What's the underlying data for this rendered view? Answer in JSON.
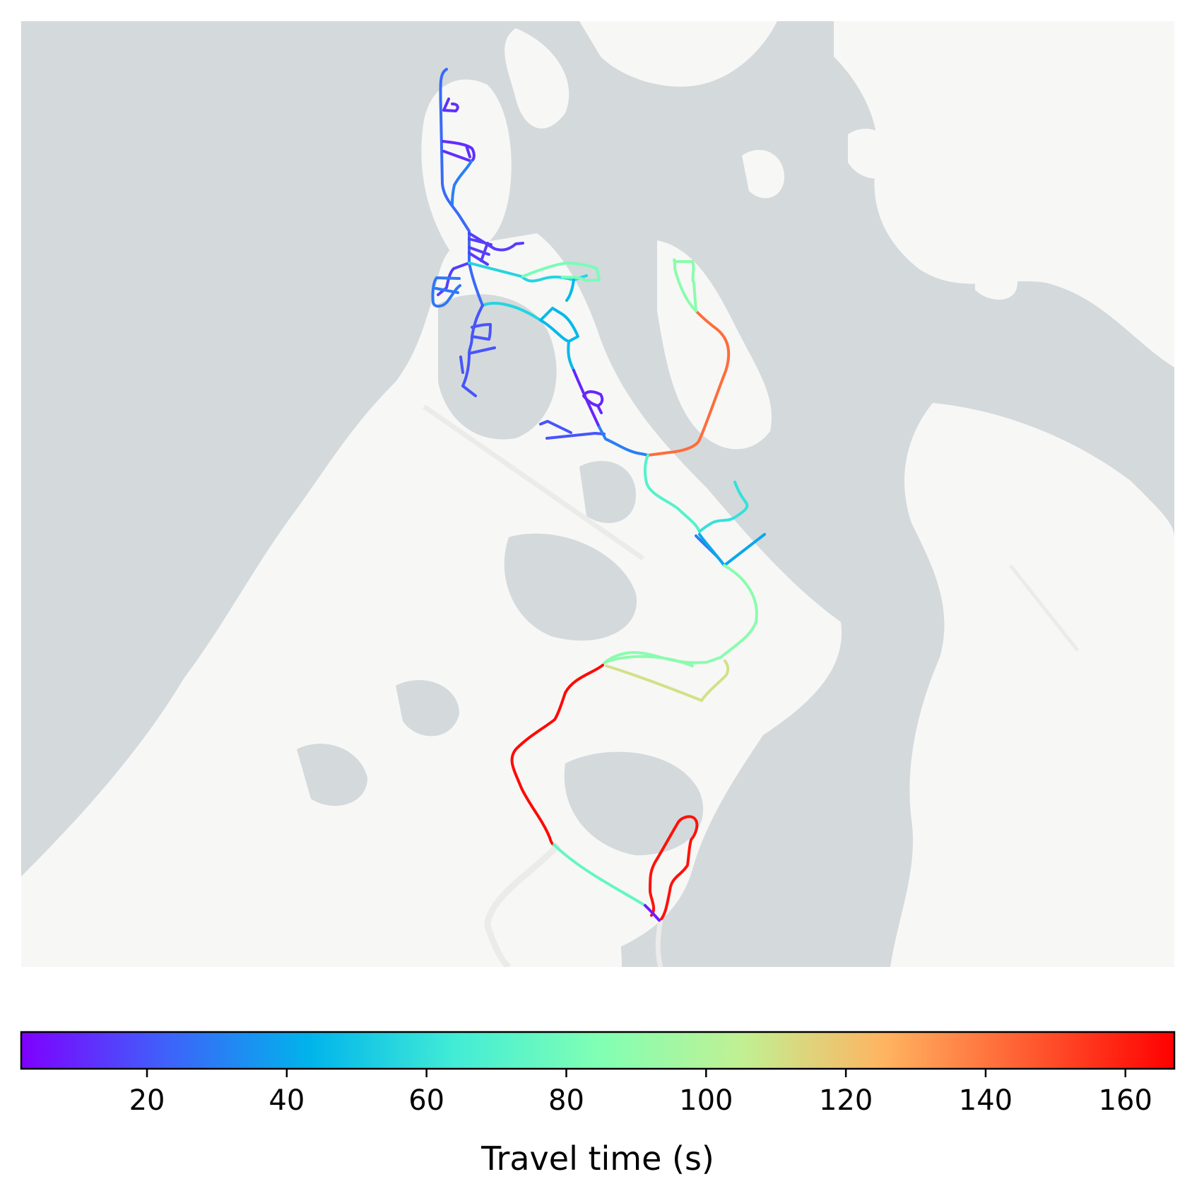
{
  "colors": {
    "water": "#d4d9dc",
    "land": "#f7f7f6",
    "road_faint": "#ebebea",
    "colormap": [
      "#7f00ff",
      "#3f61fa",
      "#00b4eb",
      "#41ecd6",
      "#80ffb4",
      "#c1f093",
      "#ffb360",
      "#ff5a30",
      "#ff0000"
    ]
  },
  "colorbar": {
    "label": "Travel time (s)",
    "vmin": 2,
    "vmax": 167,
    "ticks": [
      20,
      40,
      60,
      80,
      100,
      120,
      140,
      160
    ]
  },
  "routes": [
    {
      "id": "north-spine",
      "travel_time_s": 25
    },
    {
      "id": "north-loops",
      "travel_time_s": 12
    },
    {
      "id": "north-branch",
      "travel_time_s": 30
    },
    {
      "id": "central-junction-streets",
      "travel_time_s": 15
    },
    {
      "id": "west-culdesac",
      "travel_time_s": 28
    },
    {
      "id": "east-branch-road",
      "travel_time_s": 55
    },
    {
      "id": "peninsula-loop",
      "travel_time_s": 82
    },
    {
      "id": "mid-road",
      "travel_time_s": 45
    },
    {
      "id": "sw-streets",
      "travel_time_s": 20
    },
    {
      "id": "central-loop",
      "travel_time_s": 10
    },
    {
      "id": "se-main-road",
      "travel_time_s": 30
    },
    {
      "id": "east-coast-road",
      "travel_time_s": 142
    },
    {
      "id": "southern-connector",
      "travel_time_s": 70
    },
    {
      "id": "east-spur",
      "travel_time_s": 60
    },
    {
      "id": "east-spur-2",
      "travel_time_s": 40
    },
    {
      "id": "southeast-loop",
      "travel_time_s": 88
    },
    {
      "id": "south-shortcut",
      "travel_time_s": 110
    },
    {
      "id": "southwest-road",
      "travel_time_s": 165
    },
    {
      "id": "south-connector",
      "travel_time_s": 75
    },
    {
      "id": "south-tip-loop",
      "travel_time_s": 163
    },
    {
      "id": "south-tip-start",
      "travel_time_s": 8
    }
  ]
}
